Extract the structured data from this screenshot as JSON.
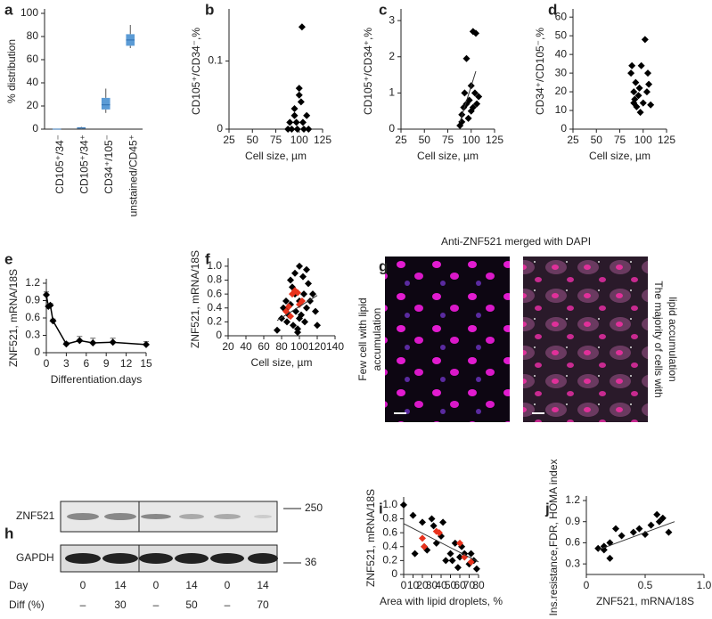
{
  "chart_data": [
    {
      "type": "box",
      "panel": "a",
      "ylabel": "% distribution",
      "categories": [
        "CD105⁺/34⁻",
        "CD105⁺/34⁺",
        "CD34⁺/105⁻",
        "unstained/CD45⁺"
      ],
      "boxes": [
        {
          "min": 0,
          "q1": 0,
          "median": 0,
          "q3": 0,
          "max": 0
        },
        {
          "min": 0,
          "q1": 0.5,
          "median": 1,
          "q3": 1.5,
          "max": 2
        },
        {
          "min": 14,
          "q1": 17,
          "median": 21,
          "q3": 27,
          "max": 35
        },
        {
          "min": 70,
          "q1": 72,
          "median": 77,
          "q3": 82,
          "max": 90
        }
      ],
      "color": "#5b9bd5",
      "ylim": [
        0,
        100
      ],
      "yticks": [
        0,
        20,
        40,
        60,
        80,
        100
      ]
    },
    {
      "type": "scatter",
      "panel": "b",
      "xlabel": "Cell size, µm",
      "ylabel": "CD105⁺/CD34⁻,%",
      "xlim": [
        25,
        125
      ],
      "xticks": [
        25,
        50,
        75,
        100,
        125
      ],
      "ylim": [
        0,
        0.17
      ],
      "yticks": [
        0,
        0.1
      ],
      "series": [
        {
          "color": "#000000",
          "x": [
            88,
            90,
            92,
            95,
            95,
            97,
            98,
            100,
            100,
            102,
            103,
            104,
            105,
            108,
            110
          ],
          "y": [
            0,
            0.01,
            0,
            0.02,
            0.03,
            0.01,
            0,
            0.05,
            0.06,
            0.04,
            0.15,
            0.01,
            0,
            0.02,
            0
          ]
        }
      ]
    },
    {
      "type": "scatter",
      "panel": "c",
      "xlabel": "Cell size, µm",
      "ylabel": "CD105⁺/CD34⁺,%",
      "xlim": [
        25,
        125
      ],
      "xticks": [
        25,
        50,
        75,
        100,
        125
      ],
      "ylim": [
        0,
        3.2
      ],
      "yticks": [
        0,
        1,
        2,
        3
      ],
      "series": [
        {
          "color": "#000000",
          "x": [
            88,
            90,
            90,
            92,
            93,
            95,
            95,
            97,
            98,
            100,
            100,
            102,
            102,
            104,
            105,
            106,
            108
          ],
          "y": [
            0.1,
            0.2,
            0.4,
            0.6,
            1.0,
            1.95,
            0.7,
            0.3,
            0.8,
            0.5,
            1.2,
            0.6,
            2.7,
            1.0,
            2.65,
            0.7,
            0.9
          ]
        }
      ],
      "fit": {
        "x": [
          88,
          105
        ],
        "y": [
          0.2,
          1.6
        ]
      }
    },
    {
      "type": "scatter",
      "panel": "d",
      "xlabel": "Cell size, µm",
      "ylabel": "CD34⁺/CD105⁻,%",
      "xlim": [
        25,
        125
      ],
      "xticks": [
        25,
        50,
        75,
        100,
        125
      ],
      "ylim": [
        0,
        62
      ],
      "yticks": [
        0,
        10,
        20,
        30,
        40,
        50,
        60
      ],
      "series": [
        {
          "color": "#000000",
          "x": [
            87,
            88,
            90,
            90,
            91,
            92,
            93,
            95,
            96,
            97,
            98,
            100,
            102,
            104,
            105,
            106,
            108
          ],
          "y": [
            30,
            34,
            20,
            14,
            16,
            25,
            12,
            18,
            22,
            9,
            34,
            14,
            48,
            20,
            30,
            24,
            13
          ]
        }
      ]
    },
    {
      "type": "errorline",
      "panel": "e",
      "xlabel": "Differentiation.days",
      "ylabel": "ZNF521, mRNA/18S",
      "xlim": [
        0,
        15
      ],
      "xticks": [
        0,
        3,
        6,
        9,
        12,
        15
      ],
      "ylim": [
        0,
        1.2
      ],
      "yticks": [
        0,
        0.3,
        0.6,
        0.9,
        1.2
      ],
      "x": [
        0,
        0.3,
        0.6,
        1,
        3,
        5,
        7,
        10,
        15
      ],
      "values": [
        1.0,
        0.8,
        0.82,
        0.55,
        0.15,
        0.21,
        0.17,
        0.18,
        0.14
      ],
      "errors": [
        0.05,
        0.03,
        0.03,
        0.03,
        0.03,
        0.07,
        0.08,
        0.07,
        0.05
      ],
      "color": "#000000"
    },
    {
      "type": "scatter",
      "panel": "f",
      "xlabel": "Cell size, µm",
      "ylabel": "ZNF521, mRNA/18S",
      "xlim": [
        20,
        140
      ],
      "xticks": [
        20,
        40,
        60,
        80,
        100,
        120,
        140
      ],
      "ylim": [
        0,
        1.05
      ],
      "yticks": [
        0,
        0.2,
        0.4,
        0.6,
        0.8,
        {
          "value": 1,
          "label": "1.0"
        }
      ],
      "series": [
        {
          "color": "#000000",
          "x": [
            75,
            80,
            82,
            85,
            86,
            88,
            90,
            92,
            93,
            95,
            96,
            98,
            100,
            100,
            102,
            104,
            105,
            106,
            108,
            110,
            112,
            115,
            118,
            120,
            100,
            95,
            90,
            108,
            85,
            98
          ],
          "y": [
            0.08,
            0.25,
            0.4,
            0.5,
            0.2,
            0.3,
            0.45,
            0.7,
            0.15,
            0.9,
            0.35,
            0.1,
            1.0,
            0.5,
            0.3,
            0.85,
            0.6,
            0.2,
            0.4,
            0.75,
            0.5,
            0.6,
            0.35,
            0.15,
            0.25,
            0.6,
            0.8,
            0.95,
            0.38,
            0.05
          ]
        },
        {
          "color": "#e8321c",
          "x": [
            85,
            88,
            92,
            95,
            98,
            100,
            103,
            90
          ],
          "y": [
            0.35,
            0.42,
            0.6,
            0.65,
            0.62,
            0.45,
            0.5,
            0.28
          ]
        }
      ],
      "fit": {
        "x": [
          75,
          120
        ],
        "y": [
          0.22,
          0.58
        ]
      }
    },
    {
      "type": "scatter",
      "panel": "i",
      "xlabel": "Area with lipid droplets, %",
      "ylabel": "ZNF521, mRNA/18S",
      "xlim": [
        0,
        80
      ],
      "xticks": [
        0,
        10,
        20,
        30,
        40,
        50,
        60,
        70,
        80
      ],
      "ylim": [
        0,
        1.05
      ],
      "yticks": [
        0,
        0.2,
        0.4,
        0.6,
        0.8,
        {
          "value": 1,
          "label": "1.0"
        }
      ],
      "series": [
        {
          "color": "#000000",
          "x": [
            0,
            10,
            12,
            20,
            22,
            25,
            30,
            32,
            35,
            40,
            42,
            45,
            50,
            52,
            55,
            58,
            60,
            62,
            65,
            70,
            72,
            75,
            78
          ],
          "y": [
            1.0,
            0.85,
            0.3,
            0.75,
            0.4,
            0.35,
            0.8,
            0.7,
            0.45,
            0.55,
            0.75,
            0.2,
            0.3,
            0.2,
            0.45,
            0.1,
            0.25,
            0.4,
            0.3,
            0.15,
            0.3,
            0.2,
            0.08
          ]
        },
        {
          "color": "#e8321c",
          "x": [
            20,
            22,
            35,
            38,
            60,
            65,
            72
          ],
          "y": [
            0.52,
            0.4,
            0.62,
            0.6,
            0.45,
            0.25,
            0.18
          ]
        }
      ],
      "fit": {
        "x": [
          0,
          80
        ],
        "y": [
          0.73,
          0.18
        ]
      }
    },
    {
      "type": "scatter",
      "panel": "j",
      "xlabel": "ZNF521, mRNA/18S",
      "ylabel": "Ins.resistance,FDR, HOMA index",
      "xlim": [
        0,
        1
      ],
      "xticks": [
        0,
        0.5,
        {
          "value": 1,
          "label": "1.0"
        }
      ],
      "ylim": [
        0.15,
        1.2
      ],
      "yticks": [
        0.3,
        0.6,
        0.9,
        1.2
      ],
      "series": [
        {
          "color": "#000000",
          "x": [
            0.1,
            0.15,
            0.15,
            0.2,
            0.2,
            0.25,
            0.3,
            0.4,
            0.45,
            0.5,
            0.55,
            0.6,
            0.62,
            0.65,
            0.7
          ],
          "y": [
            0.52,
            0.55,
            0.5,
            0.6,
            0.38,
            0.8,
            0.7,
            0.75,
            0.8,
            0.72,
            0.85,
            1.0,
            0.9,
            0.95,
            0.75
          ]
        }
      ],
      "fit": {
        "x": [
          0.1,
          0.75
        ],
        "y": [
          0.5,
          0.9
        ]
      }
    }
  ],
  "g": {
    "panel": "g",
    "title": "Anti-ZNF521 merged with DAPI",
    "left_label": [
      "Few cell with lipid",
      "accumulation"
    ],
    "right_label": [
      "The majority of  cells with",
      "lipid accumulation"
    ]
  },
  "h": {
    "panel": "h",
    "rows": [
      "ZNF521",
      "GAPDH"
    ],
    "markers": [
      "250",
      "36"
    ],
    "day_label": "Day",
    "days": [
      "0",
      "14",
      "0",
      "14",
      "0",
      "14"
    ],
    "diff_label": "Diff (%)",
    "diff": [
      "–",
      "30",
      "–",
      "50",
      "–",
      "70"
    ]
  }
}
